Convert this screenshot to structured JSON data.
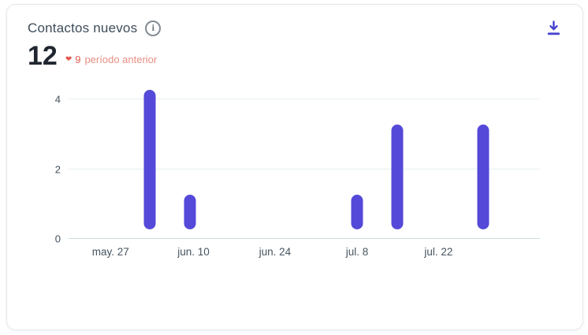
{
  "card": {
    "title": "Contactos nuevos",
    "stat_value": "12",
    "delta_value": "9",
    "delta_label": "período anterior"
  },
  "icons": {
    "info": "i",
    "heart": "❤",
    "download": "download-arrow-to-tray"
  },
  "colors": {
    "bar": "#5449d8",
    "download_icon": "#4644ce",
    "delta_red": "#e05b4e",
    "delta_text": "#e68f84",
    "title_text": "#3d4c59"
  },
  "chart_data": {
    "type": "bar",
    "title": "Contactos nuevos",
    "xlabel": "",
    "ylabel": "",
    "ylim": [
      0,
      4.4
    ],
    "grid": true,
    "y_ticks": [
      0,
      2,
      4
    ],
    "x_tick_labels": [
      "may. 27",
      "jun. 10",
      "jun. 24",
      "jul. 8",
      "jul. 22"
    ],
    "x_tick_positions_pct": [
      8.9,
      26.5,
      43.8,
      61.2,
      78.5
    ],
    "bar_color": "#5449d8",
    "bars": [
      {
        "x_pct": 17.2,
        "value": 4
      },
      {
        "x_pct": 25.8,
        "value": 1
      },
      {
        "x_pct": 61.2,
        "value": 1
      },
      {
        "x_pct": 69.7,
        "value": 3
      },
      {
        "x_pct": 88.0,
        "value": 3
      }
    ],
    "total": 12
  }
}
